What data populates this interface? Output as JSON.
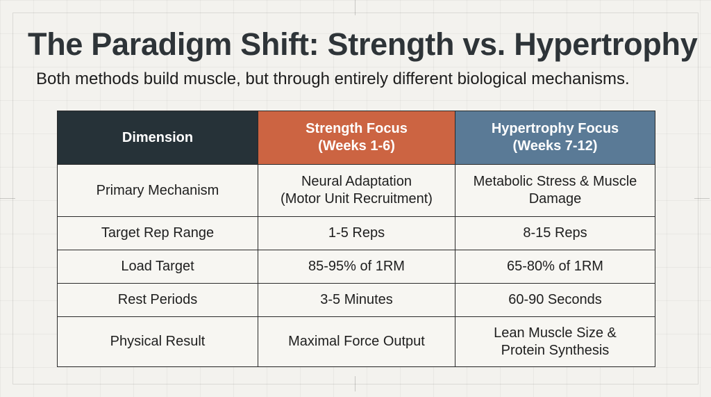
{
  "header": {
    "title": "The Paradigm Shift: Strength vs. Hypertrophy",
    "subtitle": "Both methods build muscle, but through entirely different biological mechanisms."
  },
  "colors": {
    "dimension_header": "#263238",
    "strength_header": "#cc6442",
    "hypertrophy_header": "#5a7a96",
    "background": "#f3f2ee"
  },
  "table": {
    "headers": {
      "dimension": "Dimension",
      "strength_line1": "Strength Focus",
      "strength_line2": "(Weeks 1-6)",
      "hypertrophy_line1": "Hypertrophy Focus",
      "hypertrophy_line2": "(Weeks 7-12)"
    },
    "rows": [
      {
        "dimension": "Primary Mechanism",
        "strength_line1": "Neural Adaptation",
        "strength_line2": "(Motor Unit Recruitment)",
        "hypertrophy_line1": "Metabolic Stress & Muscle",
        "hypertrophy_line2": "Damage"
      },
      {
        "dimension": "Target Rep Range",
        "strength": "1-5 Reps",
        "hypertrophy": "8-15 Reps"
      },
      {
        "dimension": "Load Target",
        "strength": "85-95% of 1RM",
        "hypertrophy": "65-80% of 1RM"
      },
      {
        "dimension": "Rest Periods",
        "strength": "3-5 Minutes",
        "hypertrophy": "60-90 Seconds"
      },
      {
        "dimension": "Physical Result",
        "strength": "Maximal Force Output",
        "hypertrophy_line1": "Lean Muscle Size &",
        "hypertrophy_line2": "Protein Synthesis"
      }
    ]
  }
}
